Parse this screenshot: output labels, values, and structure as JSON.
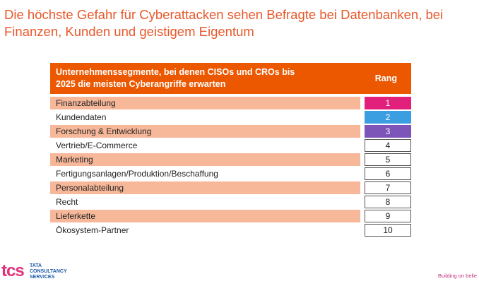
{
  "title": "Die höchste Gefahr für Cyberattacken sehen Befragte bei Datenbanken, bei Finanzen, Kunden und geistigem Eigentum",
  "table": {
    "header_line1": "Unternehmenssegmente, bei denen CISOs und CROs bis",
    "header_line2": "2025 die meisten Cyberangriffe erwarten",
    "rank_header": "Rang",
    "rows": [
      {
        "label": "Finanzabteilung",
        "rank": "1",
        "rank_color": "#e0207a"
      },
      {
        "label": "Kundendaten",
        "rank": "2",
        "rank_color": "#3a9ee0"
      },
      {
        "label": "Forschung & Entwicklung",
        "rank": "3",
        "rank_color": "#7d55b8"
      },
      {
        "label": "Vertrieb/E-Commerce",
        "rank": "4"
      },
      {
        "label": "Marketing",
        "rank": "5"
      },
      {
        "label": "Fertigungsanlagen/Produktion/Beschaffung",
        "rank": "6"
      },
      {
        "label": "Personalabteilung",
        "rank": "7"
      },
      {
        "label": "Recht",
        "rank": "8"
      },
      {
        "label": "Lieferkette",
        "rank": "9"
      },
      {
        "label": "Ökosystem-Partner",
        "rank": "10"
      }
    ]
  },
  "footer": {
    "logo_mark": "tcs",
    "logo_line1": "TATA",
    "logo_line2": "CONSULTANCY",
    "logo_line3": "SERVICES",
    "tagline": "Building on belie"
  }
}
